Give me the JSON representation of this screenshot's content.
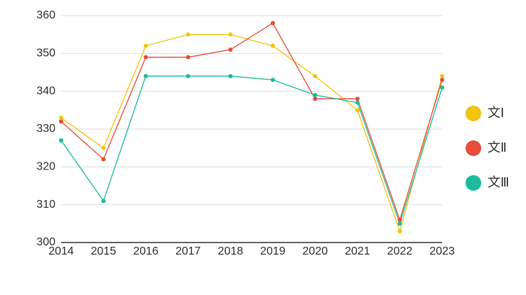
{
  "chart_data": {
    "type": "line",
    "categories": [
      "2014",
      "2015",
      "2016",
      "2017",
      "2018",
      "2019",
      "2020",
      "2021",
      "2022",
      "2023"
    ],
    "series": [
      {
        "name": "文Ⅰ",
        "color": "#f1c40f",
        "values": [
          333,
          325,
          352,
          355,
          355,
          352,
          344,
          335,
          303,
          344
        ]
      },
      {
        "name": "文Ⅱ",
        "color": "#e74c3c",
        "values": [
          332,
          322,
          349,
          349,
          351,
          358,
          338,
          338,
          306,
          343
        ]
      },
      {
        "name": "文Ⅲ",
        "color": "#1abc9c",
        "values": [
          327,
          311,
          344,
          344,
          344,
          343,
          339,
          337,
          305,
          341
        ]
      }
    ],
    "ylim": [
      300,
      360
    ],
    "yticks": [
      300,
      310,
      320,
      330,
      340,
      350,
      360
    ],
    "grid": true,
    "legend": "right"
  }
}
